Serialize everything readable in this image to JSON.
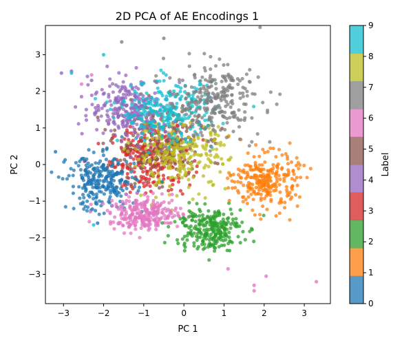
{
  "chart_data": {
    "type": "scatter",
    "title": "2D PCA of AE Encodings 1",
    "xlabel": "PC 1",
    "ylabel": "PC 2",
    "xlim": [
      -3.45,
      3.65
    ],
    "ylim": [
      -3.8,
      3.8
    ],
    "xticks": [
      -3,
      -2,
      -1,
      0,
      1,
      2,
      3
    ],
    "yticks": [
      -3,
      -2,
      -1,
      0,
      1,
      2,
      3
    ],
    "grid": false,
    "colorbar": {
      "label": "Label",
      "range": [
        0,
        9
      ],
      "ticks": [
        0,
        1,
        2,
        3,
        4,
        5,
        6,
        7,
        8,
        9
      ],
      "colors": [
        "#1f77b4",
        "#ff7f0e",
        "#2ca02c",
        "#d62728",
        "#9467bd",
        "#8c564b",
        "#e377c2",
        "#7f7f7f",
        "#bcbd22",
        "#17becf"
      ]
    },
    "clusters": [
      {
        "label": 0,
        "center": [
          -2.05,
          -0.5
        ],
        "spread": [
          0.42,
          0.38
        ]
      },
      {
        "label": 1,
        "center": [
          2.05,
          -0.45
        ],
        "spread": [
          0.4,
          0.38
        ]
      },
      {
        "label": 2,
        "center": [
          0.6,
          -1.75
        ],
        "spread": [
          0.42,
          0.3
        ]
      },
      {
        "label": 3,
        "center": [
          -0.85,
          0.15
        ],
        "spread": [
          0.5,
          0.45
        ]
      },
      {
        "label": 4,
        "center": [
          -1.35,
          1.55
        ],
        "spread": [
          0.5,
          0.4
        ]
      },
      {
        "label": 5,
        "center": [
          -0.65,
          0.55
        ],
        "spread": [
          0.55,
          0.45
        ]
      },
      {
        "label": 6,
        "center": [
          -0.95,
          -1.35
        ],
        "spread": [
          0.45,
          0.22
        ]
      },
      {
        "label": 7,
        "center": [
          0.75,
          1.75
        ],
        "spread": [
          0.6,
          0.5
        ]
      },
      {
        "label": 8,
        "center": [
          -0.1,
          0.25
        ],
        "spread": [
          0.6,
          0.45
        ]
      },
      {
        "label": 9,
        "center": [
          -0.4,
          1.45
        ],
        "spread": [
          0.6,
          0.4
        ]
      }
    ],
    "outliers": [
      {
        "label": 6,
        "x": 3.3,
        "y": -3.2
      },
      {
        "label": 6,
        "x": 2.05,
        "y": -3.05
      },
      {
        "label": 6,
        "x": 1.75,
        "y": -3.3
      },
      {
        "label": 6,
        "x": 1.75,
        "y": -3.45
      },
      {
        "label": 6,
        "x": 1.1,
        "y": -2.85
      },
      {
        "label": 4,
        "x": -2.8,
        "y": 2.55
      },
      {
        "label": 4,
        "x": -2.3,
        "y": 2.3
      },
      {
        "label": 9,
        "x": -2.0,
        "y": 3.0
      },
      {
        "label": 9,
        "x": -2.8,
        "y": 2.5
      },
      {
        "label": 7,
        "x": -0.5,
        "y": 3.45
      },
      {
        "label": 7,
        "x": -1.55,
        "y": 3.35
      },
      {
        "label": 6,
        "x": -2.3,
        "y": 2.45
      },
      {
        "label": 6,
        "x": -2.55,
        "y": 2.2
      },
      {
        "label": 4,
        "x": -3.05,
        "y": 2.5
      },
      {
        "label": 0,
        "x": -3.2,
        "y": 0.35
      },
      {
        "label": 0,
        "x": -2.15,
        "y": -1.6
      },
      {
        "label": 9,
        "x": -2.25,
        "y": -1.65
      }
    ]
  }
}
